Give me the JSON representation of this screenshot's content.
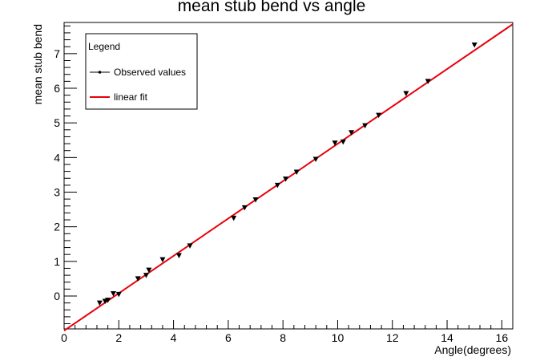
{
  "chart_data": {
    "type": "scatter",
    "title": "mean stub bend vs angle",
    "xlabel": "Angle(degrees)",
    "ylabel": "mean stub bend",
    "xlim": [
      0,
      16.4
    ],
    "ylim": [
      -0.95,
      7.9
    ],
    "xticks": [
      0,
      2,
      4,
      6,
      8,
      10,
      12,
      14,
      16
    ],
    "yticks": [
      0,
      1,
      2,
      3,
      4,
      5,
      6,
      7
    ],
    "grid": false,
    "legend": {
      "title": "Legend",
      "placement": "top-left",
      "entries": [
        {
          "label": "Observed values",
          "style": "marker-line",
          "color": "#000000"
        },
        {
          "label": "linear fit",
          "style": "line",
          "color": "#e8000b"
        }
      ]
    },
    "series": [
      {
        "name": "Observed values",
        "marker": "triangle-down",
        "color": "#000000",
        "points": [
          {
            "x": 1.3,
            "y": -0.2
          },
          {
            "x": 1.5,
            "y": -0.15
          },
          {
            "x": 1.6,
            "y": -0.12
          },
          {
            "x": 1.8,
            "y": 0.07
          },
          {
            "x": 2.0,
            "y": 0.05
          },
          {
            "x": 2.7,
            "y": 0.5
          },
          {
            "x": 3.0,
            "y": 0.6
          },
          {
            "x": 3.1,
            "y": 0.75
          },
          {
            "x": 3.6,
            "y": 1.05
          },
          {
            "x": 4.2,
            "y": 1.17
          },
          {
            "x": 4.6,
            "y": 1.45
          },
          {
            "x": 6.2,
            "y": 2.25
          },
          {
            "x": 6.6,
            "y": 2.55
          },
          {
            "x": 7.0,
            "y": 2.78
          },
          {
            "x": 7.8,
            "y": 3.2
          },
          {
            "x": 8.1,
            "y": 3.38
          },
          {
            "x": 8.5,
            "y": 3.58
          },
          {
            "x": 9.2,
            "y": 3.95
          },
          {
            "x": 9.9,
            "y": 4.42
          },
          {
            "x": 10.2,
            "y": 4.45
          },
          {
            "x": 10.5,
            "y": 4.72
          },
          {
            "x": 11.0,
            "y": 4.92
          },
          {
            "x": 11.5,
            "y": 5.22
          },
          {
            "x": 12.5,
            "y": 5.85
          },
          {
            "x": 13.3,
            "y": 6.2
          },
          {
            "x": 15.0,
            "y": 7.25
          }
        ]
      },
      {
        "name": "linear fit",
        "type": "line",
        "color": "#e8000b",
        "points": [
          {
            "x": 0.0,
            "y": -1.0
          },
          {
            "x": 16.4,
            "y": 7.85
          }
        ]
      }
    ]
  }
}
